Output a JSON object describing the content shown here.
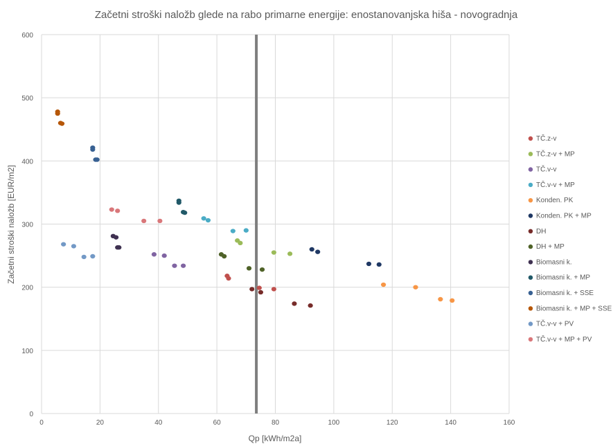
{
  "chart_data": {
    "type": "scatter",
    "title": "Začetni stroški naložb glede na rabo primarne energije: enostanovanjska hiša - novogradnja",
    "xlabel": "Qp [kWh/m2a]",
    "ylabel": "Začetni stroški naložb [EUR/m2]",
    "xlim": [
      0,
      160
    ],
    "ylim": [
      0,
      600
    ],
    "x_ticks": [
      "0",
      "20",
      "40",
      "60",
      "80",
      "100",
      "120",
      "140",
      "160"
    ],
    "y_ticks": [
      "0",
      "100",
      "200",
      "300",
      "400",
      "500",
      "600"
    ],
    "grid": true,
    "legend_position": "right",
    "reference_line": {
      "x": 73.5,
      "color": "#7f7f7f"
    },
    "series": [
      {
        "name": "TČ.z-v",
        "color": "#c0504d",
        "points": [
          [
            63.5,
            218
          ],
          [
            64,
            214
          ],
          [
            74.5,
            199
          ],
          [
            79.5,
            197
          ]
        ]
      },
      {
        "name": "TČ.z-v + MP",
        "color": "#9bbb59",
        "points": [
          [
            67,
            274
          ],
          [
            68,
            270
          ],
          [
            79.5,
            255
          ],
          [
            85,
            253
          ]
        ]
      },
      {
        "name": "TČ.v-v",
        "color": "#8064a2",
        "points": [
          [
            38.5,
            252
          ],
          [
            42,
            250
          ],
          [
            45.5,
            234
          ],
          [
            48.5,
            234
          ]
        ]
      },
      {
        "name": "TČ.v-v + MP",
        "color": "#4bacc6",
        "points": [
          [
            55.5,
            309
          ],
          [
            57,
            306
          ],
          [
            65.5,
            289
          ],
          [
            70,
            290
          ]
        ]
      },
      {
        "name": "Konden. PK",
        "color": "#f79646",
        "points": [
          [
            117,
            204
          ],
          [
            128,
            200
          ],
          [
            136.5,
            181
          ],
          [
            140.5,
            179
          ]
        ]
      },
      {
        "name": "Konden. PK + MP",
        "color": "#1f3864",
        "points": [
          [
            92.5,
            260
          ],
          [
            94.5,
            256
          ],
          [
            112,
            237
          ],
          [
            115.5,
            236
          ]
        ]
      },
      {
        "name": "DH",
        "color": "#772c2a",
        "points": [
          [
            72,
            197
          ],
          [
            75,
            192
          ],
          [
            86.5,
            174
          ],
          [
            92,
            171
          ]
        ]
      },
      {
        "name": "DH + MP",
        "color": "#4f6228",
        "points": [
          [
            61.5,
            252
          ],
          [
            62.5,
            249
          ],
          [
            71,
            230
          ],
          [
            75.5,
            228
          ]
        ]
      },
      {
        "name": "Biomasni k.",
        "color": "#3f3151",
        "points": [
          [
            24.5,
            281
          ],
          [
            25.5,
            279
          ],
          [
            26,
            263
          ],
          [
            26.5,
            263
          ]
        ]
      },
      {
        "name": "Biomasni k. + MP",
        "color": "#215968",
        "points": [
          [
            47,
            337
          ],
          [
            47,
            334
          ],
          [
            48.5,
            319
          ],
          [
            49,
            318
          ]
        ]
      },
      {
        "name": "Biomasni k. + SSE",
        "color": "#376092",
        "points": [
          [
            17.5,
            421
          ],
          [
            17.5,
            418
          ],
          [
            18.5,
            402
          ],
          [
            19,
            402
          ]
        ]
      },
      {
        "name": "Biomasni k. + MP + SSE",
        "color": "#b65708",
        "points": [
          [
            5.5,
            478
          ],
          [
            5.5,
            475
          ],
          [
            6.5,
            460
          ],
          [
            7,
            459
          ]
        ]
      },
      {
        "name": "TČ.v-v + PV",
        "color": "#7399c6",
        "points": [
          [
            7.5,
            268
          ],
          [
            11,
            265
          ],
          [
            14.5,
            248
          ],
          [
            17.5,
            249
          ]
        ]
      },
      {
        "name": "TČ.v-v + MP + PV",
        "color": "#d9777a",
        "points": [
          [
            24,
            323
          ],
          [
            26,
            321
          ],
          [
            35,
            305
          ],
          [
            40.5,
            305
          ]
        ]
      }
    ]
  }
}
